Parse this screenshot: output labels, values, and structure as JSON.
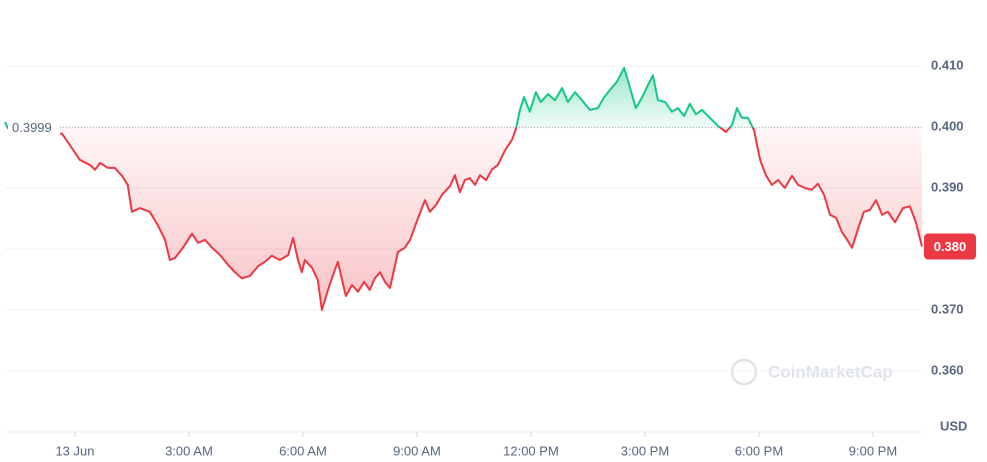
{
  "chart_data": {
    "type": "line",
    "x": [
      -1.84,
      -1.76,
      -0.34,
      -0.13,
      0.13,
      0.39,
      0.53,
      0.66,
      0.87,
      1.05,
      1.24,
      1.39,
      1.5,
      1.71,
      1.97,
      2.18,
      2.37,
      2.5,
      2.63,
      2.84,
      3.08,
      3.24,
      3.42,
      3.61,
      3.82,
      4.03,
      4.21,
      4.39,
      4.61,
      4.82,
      5.0,
      5.18,
      5.39,
      5.61,
      5.74,
      5.87,
      5.97,
      6.05,
      6.24,
      6.39,
      6.5,
      6.66,
      6.79,
      6.92,
      7.03,
      7.13,
      7.29,
      7.45,
      7.61,
      7.76,
      7.89,
      8.03,
      8.16,
      8.29,
      8.5,
      8.68,
      8.82,
      9.03,
      9.21,
      9.34,
      9.5,
      9.66,
      9.87,
      10.0,
      10.13,
      10.26,
      10.39,
      10.53,
      10.66,
      10.82,
      10.97,
      11.13,
      11.32,
      11.5,
      11.61,
      11.71,
      11.82,
      11.97,
      12.13,
      12.26,
      12.45,
      12.63,
      12.82,
      12.97,
      13.16,
      13.34,
      13.55,
      13.76,
      13.92,
      14.08,
      14.26,
      14.45,
      14.61,
      14.76,
      14.92,
      15.08,
      15.21,
      15.34,
      15.53,
      15.71,
      15.87,
      16.03,
      16.18,
      16.34,
      16.5,
      16.71,
      16.92,
      17.13,
      17.29,
      17.42,
      17.55,
      17.71,
      17.87,
      18.03,
      18.18,
      18.34,
      18.5,
      18.68,
      18.87,
      19.03,
      19.21,
      19.39,
      19.55,
      19.71,
      19.87,
      20.03,
      20.18,
      20.29,
      20.45,
      20.61,
      20.76,
      20.92,
      21.08,
      21.24,
      21.39,
      21.58,
      21.79,
      21.97,
      22.13,
      22.29
    ],
    "values": [
      0.4008,
      0.3998,
      0.3989,
      0.397,
      0.3946,
      0.3938,
      0.393,
      0.3941,
      0.3933,
      0.3933,
      0.392,
      0.3905,
      0.3861,
      0.3867,
      0.3861,
      0.3839,
      0.3815,
      0.3782,
      0.3785,
      0.3802,
      0.3825,
      0.381,
      0.3815,
      0.3802,
      0.379,
      0.3774,
      0.3762,
      0.3752,
      0.3756,
      0.3772,
      0.3779,
      0.3789,
      0.3782,
      0.379,
      0.3818,
      0.3782,
      0.3762,
      0.3782,
      0.3769,
      0.3749,
      0.37,
      0.3733,
      0.3757,
      0.3779,
      0.3749,
      0.3723,
      0.3741,
      0.373,
      0.3746,
      0.3733,
      0.3752,
      0.3762,
      0.3746,
      0.3736,
      0.3795,
      0.3802,
      0.3815,
      0.3851,
      0.388,
      0.3861,
      0.3872,
      0.3889,
      0.3903,
      0.3921,
      0.3893,
      0.3913,
      0.3916,
      0.3905,
      0.3921,
      0.3913,
      0.393,
      0.3938,
      0.3962,
      0.3979,
      0.3998,
      0.4028,
      0.4049,
      0.4025,
      0.4057,
      0.4041,
      0.4054,
      0.4044,
      0.4064,
      0.4041,
      0.4057,
      0.4044,
      0.4028,
      0.4031,
      0.4048,
      0.4061,
      0.4074,
      0.4097,
      0.4064,
      0.4031,
      0.4048,
      0.4069,
      0.4085,
      0.4044,
      0.4041,
      0.4025,
      0.4031,
      0.4018,
      0.4038,
      0.4021,
      0.4028,
      0.4015,
      0.4002,
      0.3992,
      0.4003,
      0.4031,
      0.4015,
      0.4015,
      0.3995,
      0.3946,
      0.3921,
      0.3905,
      0.3913,
      0.39,
      0.392,
      0.3905,
      0.39,
      0.3897,
      0.3907,
      0.3889,
      0.3856,
      0.3851,
      0.3828,
      0.3818,
      0.3802,
      0.3834,
      0.3861,
      0.3864,
      0.388,
      0.3856,
      0.3861,
      0.3844,
      0.3867,
      0.387,
      0.3844,
      0.3804
    ],
    "baseline": 0.3999,
    "current_price": {
      "value": 0.3804,
      "label": "0.380"
    },
    "up_color": "#16c784",
    "down_color": "#ea3943",
    "xlim": [
      -1.84,
      22.29
    ],
    "xticks": [
      {
        "value": 0,
        "label": "13 Jun"
      },
      {
        "value": 3,
        "label": "3:00 AM"
      },
      {
        "value": 6,
        "label": "6:00 AM"
      },
      {
        "value": 9,
        "label": "9:00 AM"
      },
      {
        "value": 12,
        "label": "12:00 PM"
      },
      {
        "value": 15,
        "label": "3:00 PM"
      },
      {
        "value": 18,
        "label": "6:00 PM"
      },
      {
        "value": 21,
        "label": "9:00 PM"
      }
    ],
    "ylim": [
      0.35,
      0.42
    ],
    "yticks": [
      {
        "value": 0.36,
        "label": "0.360"
      },
      {
        "value": 0.37,
        "label": "0.370"
      },
      {
        "value": 0.38,
        "label": "0.380"
      },
      {
        "value": 0.39,
        "label": "0.390"
      },
      {
        "value": 0.4,
        "label": "0.400"
      },
      {
        "value": 0.41,
        "label": "0.410"
      }
    ],
    "y_unit": "USD",
    "watermark": "CoinMarketCap",
    "grid": true
  }
}
